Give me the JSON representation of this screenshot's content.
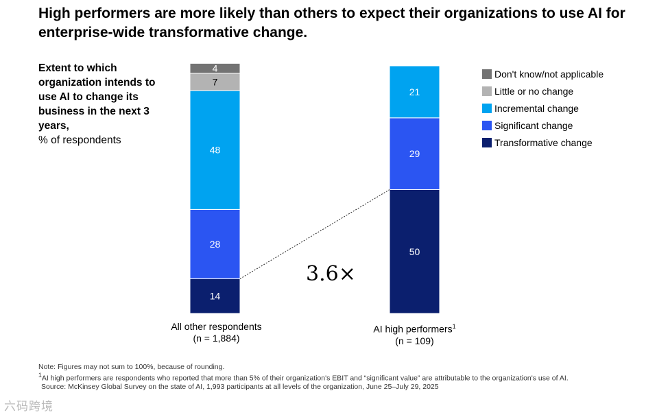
{
  "title": "High performers are more likely than others to expect their organizations to use AI for enterprise-wide transformative change.",
  "ylabel": {
    "bold": "Extent to which organization intends to use AI to change its business in the next 3 years,",
    "unit": "% of respondents"
  },
  "chart_data": {
    "type": "bar",
    "stacked": true,
    "categories": [
      "All other respondents",
      "AI high performers"
    ],
    "category_sublabels": [
      "(n = 1,884)",
      "(n = 109)"
    ],
    "category_superscripts": [
      "",
      "1"
    ],
    "series": [
      {
        "name": "Transformative change",
        "values": [
          14,
          50
        ],
        "color": "#0b1f6e"
      },
      {
        "name": "Significant change",
        "values": [
          28,
          29
        ],
        "color": "#2b55f2"
      },
      {
        "name": "Incremental change",
        "values": [
          48,
          21
        ],
        "color": "#00a3f0"
      },
      {
        "name": "Little or no change",
        "values": [
          7,
          null
        ],
        "color": "#b3b3b3"
      },
      {
        "name": "Don't know/not applicable",
        "values": [
          4,
          null
        ],
        "color": "#737373"
      }
    ],
    "legend_order": [
      "Don't know/not applicable",
      "Little or no change",
      "Incremental change",
      "Significant change",
      "Transformative change"
    ],
    "legend_position": "top-right",
    "annotation": "3.6×",
    "ylim": [
      0,
      100
    ],
    "grid": false
  },
  "notes": {
    "note": "Note: Figures may not sum to 100%, because of rounding.",
    "footnote_mark": "1",
    "footnote": "AI high performers are respondents who reported that more than 5% of their organization's EBIT and “significant value” are attributable to the organization's use of AI.",
    "source": "Source: McKinsey Global Survey on the state of AI, 1,993 participants at all levels of the organization, June 25–July 29, 2025"
  },
  "watermark": "六码跨境"
}
